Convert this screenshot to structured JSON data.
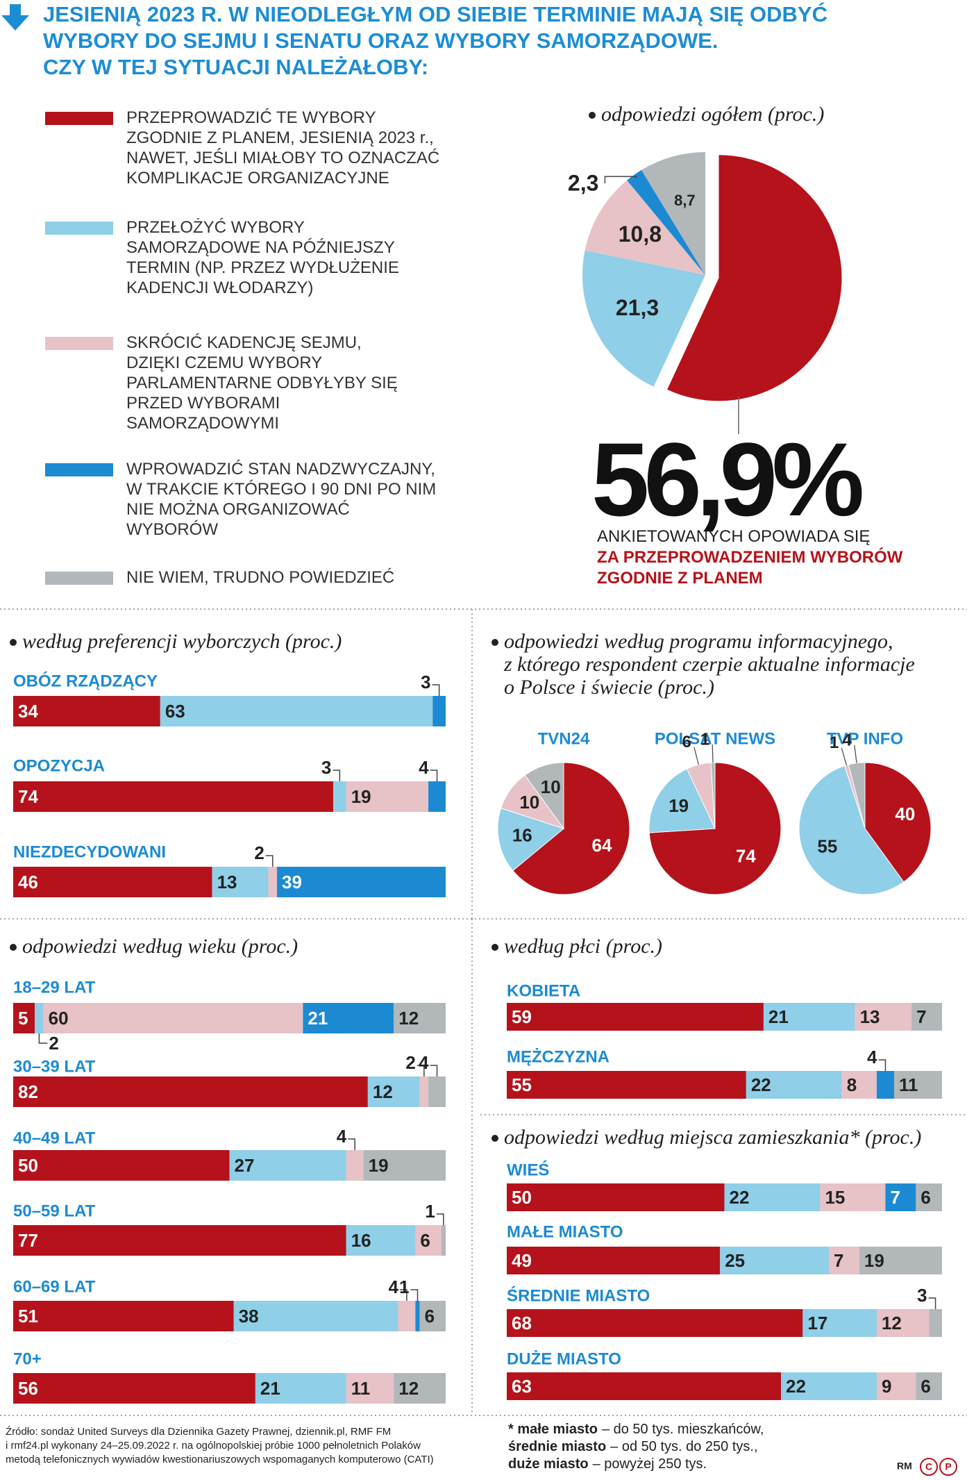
{
  "header": {
    "title": "JESIENIĄ 2023 R. W NIEODLEGŁYM OD SIEBIE TERMINIE MAJĄ SIĘ ODBYĆ\nWYBORY DO SEJMU I SENATU ORAZ WYBORY SAMORZĄDOWE.\nCZY W TEJ SYTUACJI NALEŻAŁOBY:"
  },
  "chart_data": [
    {
      "type": "pie",
      "title": "odpowiedzi ogółem (proc.)",
      "categories": [
        "PRZEPROWADZIĆ TE WYBORY\nZGODNIE Z PLANEM, JESIENIĄ 2023 r.,\nNAWET, JEŚLI MIAŁOBY TO OZNACZAĆ\nKOMPLIKACJE ORGANIZACYJNE",
        "PRZEŁOŻYĆ WYBORY\nSAMORZĄDOWE NA PÓŹNIEJSZY\nTERMIN (NP. PRZEZ WYDŁUŻENIE\nKADENCJI WŁODARZY)",
        "SKRÓCIĆ KADENCJĘ SEJMU,\nDZIĘKI CZEMU WYBORY\nPARLAMENTARNE ODBYŁYBY SIĘ\nPRZED WYBORAMI\nSAMORZĄDOWYMI",
        "WPROWADZIĆ STAN NADZWYCZAJNY,\nW TRAKCIE KTÓREGO I 90 DNI PO NIM\nNIE MOŻNA ORGANIZOWAĆ\nWYBORÓW",
        "NIE WIEM, TRUDNO POWIEDZIEĆ"
      ],
      "colors": [
        "#b5121b",
        "#8fcfe8",
        "#e7c2c7",
        "#1c8ad3",
        "#b2b7ba"
      ],
      "values": [
        56.9,
        21.3,
        10.8,
        2.3,
        8.7
      ],
      "value_labels": [
        "56,9%",
        "21,3",
        "10,8",
        "2,3",
        "8,7"
      ],
      "annotations": [
        "ANKIETOWANYCH OPOWIADA SIĘ",
        "ZA PRZEPROWADZENIEM WYBORÓW\nZGODNIE Z PLANEM"
      ]
    },
    {
      "type": "stacked-bar",
      "title": "według preferencji wyborczych (proc.)",
      "categories": [
        "OBÓZ RZĄDZĄCY",
        "OPOZYCJA",
        "NIEZDECYDOWANI"
      ],
      "series": [
        {
          "color": "#b5121b",
          "values": [
            34,
            74,
            46
          ]
        },
        {
          "color": "#8fcfe8",
          "values": [
            63,
            3,
            13
          ]
        },
        {
          "color": "#e7c2c7",
          "values": [
            null,
            19,
            2
          ]
        },
        {
          "color": "#1c8ad3",
          "values": [
            3,
            4,
            39
          ]
        }
      ]
    },
    {
      "type": "pies",
      "title": "odpowiedzi według programu informacyjnego,\nz którego respondent czerpie aktualne informacje\no Polsce i świecie (proc.)",
      "categories": [
        "TVN24",
        "POLSAT NEWS",
        "TVP INFO"
      ],
      "series": [
        {
          "color": "#b5121b",
          "values": [
            64,
            74,
            40
          ]
        },
        {
          "color": "#8fcfe8",
          "values": [
            16,
            19,
            55
          ]
        },
        {
          "color": "#e7c2c7",
          "values": [
            10,
            6,
            1
          ]
        },
        {
          "color": "#b2b7ba",
          "values": [
            10,
            1,
            4
          ]
        }
      ]
    },
    {
      "type": "stacked-bar",
      "title": "odpowiedzi według wieku (proc.)",
      "categories": [
        "18–29 LAT",
        "30–39 LAT",
        "40–49 LAT",
        "50–59 LAT",
        "60–69 LAT",
        "70+"
      ],
      "series": [
        {
          "color": "#b5121b",
          "values": [
            5,
            82,
            50,
            77,
            51,
            56
          ]
        },
        {
          "color": "#8fcfe8",
          "values": [
            2,
            12,
            27,
            16,
            38,
            21
          ]
        },
        {
          "color": "#e7c2c7",
          "values": [
            60,
            2,
            4,
            6,
            4,
            11
          ]
        },
        {
          "color": "#1c8ad3",
          "values": [
            21,
            null,
            null,
            null,
            1,
            null
          ]
        },
        {
          "color": "#b2b7ba",
          "values": [
            12,
            4,
            19,
            1,
            6,
            12
          ]
        }
      ]
    },
    {
      "type": "stacked-bar",
      "title": "według płci (proc.)",
      "categories": [
        "KOBIETA",
        "MĘŻCZYZNA"
      ],
      "series": [
        {
          "color": "#b5121b",
          "values": [
            59,
            55
          ]
        },
        {
          "color": "#8fcfe8",
          "values": [
            21,
            22
          ]
        },
        {
          "color": "#e7c2c7",
          "values": [
            13,
            8
          ]
        },
        {
          "color": "#1c8ad3",
          "values": [
            null,
            4
          ]
        },
        {
          "color": "#b2b7ba",
          "values": [
            7,
            11
          ]
        }
      ]
    },
    {
      "type": "stacked-bar",
      "title": "odpowiedzi według miejsca zamieszkania* (proc.)",
      "categories": [
        "WIEŚ",
        "MAŁE MIASTO",
        "ŚREDNIE  MIASTO",
        "DUŻE MIASTO"
      ],
      "series": [
        {
          "color": "#b5121b",
          "values": [
            50,
            49,
            68,
            63
          ]
        },
        {
          "color": "#8fcfe8",
          "values": [
            22,
            25,
            17,
            22
          ]
        },
        {
          "color": "#e7c2c7",
          "values": [
            15,
            7,
            12,
            9
          ]
        },
        {
          "color": "#1c8ad3",
          "values": [
            7,
            null,
            null,
            null
          ]
        },
        {
          "color": "#b2b7ba",
          "values": [
            6,
            19,
            3,
            6
          ]
        }
      ]
    }
  ],
  "footnote": [
    {
      "term": "* małe miasto",
      "text": "– do 50 tys. mieszkańców,"
    },
    {
      "term": "średnie miasto",
      "text": "– od 50 tys. do 250 tys.,"
    },
    {
      "term": "duże miasto",
      "text": "– powyżej 250 tys."
    }
  ],
  "source": "Źródło: sondaż United Surveys dla Dziennika Gazety Prawnej, dziennik.pl, RMF FM\ni rmf24.pl wykonany 24–25.09.2022 r. na ogólnopolskiej próbie 1000 pełnoletnich Polaków\nmetodą telefonicznych wywiadów kwestionariuszowych wspomaganych komputerowo (CATI)",
  "credit": "RM",
  "logos": [
    "C",
    "P"
  ]
}
